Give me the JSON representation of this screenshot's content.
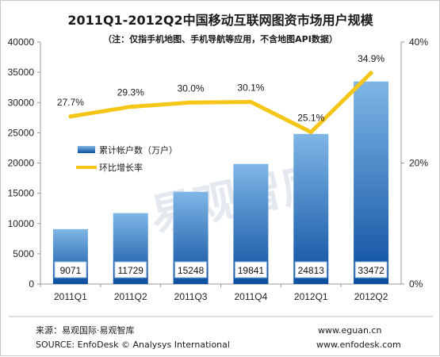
{
  "title": "2011Q1-2012Q2中国移动互联网图资市场用户规模",
  "subtitle": "（注：仅指手机地图、手机导航等应用，不含地图API数据）",
  "watermark": "易观智库",
  "footer": {
    "source_cn": "来源：易观国际·易观智库",
    "source_en": "SOURCE: EnfoDesk © Analysys International",
    "url1": "www.eguan.cn",
    "url2": "www.enfodesk.com"
  },
  "colors": {
    "bar_top": "#7fb6e6",
    "bar_bottom": "#0c4fa0",
    "line": "#f5c518",
    "grid": "#d9d9d9"
  },
  "chart_data": {
    "type": "bar",
    "categories": [
      "2011Q1",
      "2011Q2",
      "2011Q3",
      "2011Q4",
      "2012Q1",
      "2012Q2"
    ],
    "series": [
      {
        "name": "累计帐户数（万户）",
        "type": "bar",
        "axis": "left",
        "values": [
          9071,
          11729,
          15248,
          19841,
          24813,
          33472
        ]
      },
      {
        "name": "环比增长率",
        "type": "line",
        "axis": "right",
        "values": [
          27.7,
          29.3,
          30.0,
          30.1,
          25.1,
          34.9
        ],
        "labels": [
          "27.7%",
          "29.3%",
          "30.0%",
          "30.1%",
          "25.1%",
          "34.9%"
        ]
      }
    ],
    "ylim_left": [
      0,
      40000
    ],
    "yticks_left": [
      "0",
      "5000",
      "10000",
      "15000",
      "20000",
      "25000",
      "30000",
      "35000",
      "40000"
    ],
    "ylim_right": [
      0,
      40
    ],
    "yticks_right": [
      "0%",
      "20%",
      "40%"
    ],
    "legend_position": "left-middle",
    "grid": false
  }
}
